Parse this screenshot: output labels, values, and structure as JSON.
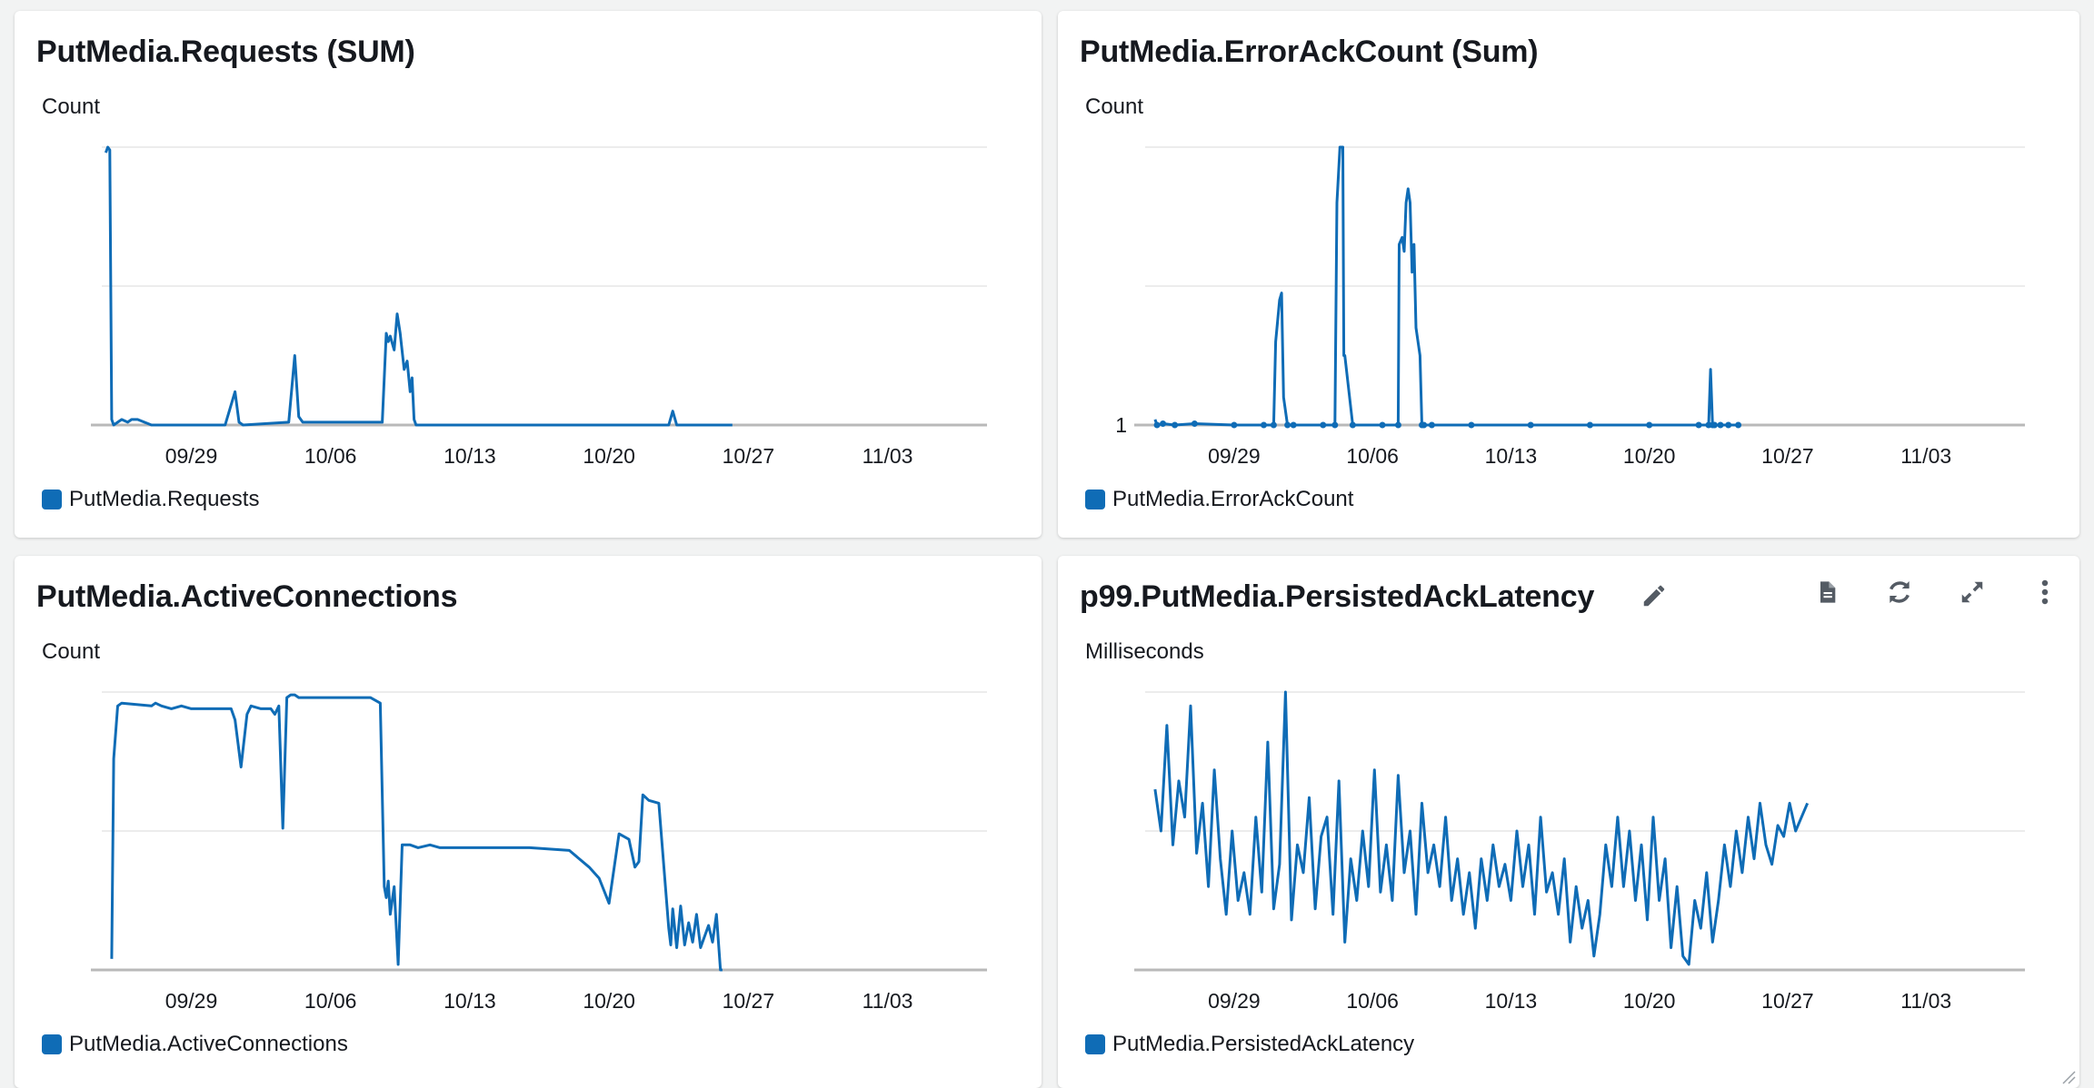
{
  "colors": {
    "series": "#0f6cb6",
    "gridline": "#e6e6e6",
    "axis": "#b9b9b9",
    "icon": "#545b64"
  },
  "panels": [
    {
      "title": "PutMedia.Requests (SUM)",
      "unit": "Count",
      "legend": "PutMedia.Requests",
      "icons": []
    },
    {
      "title": "PutMedia.ErrorAckCount (Sum)",
      "unit": "Count",
      "legend": "PutMedia.ErrorAckCount",
      "icons": []
    },
    {
      "title": "PutMedia.ActiveConnections",
      "unit": "Count",
      "legend": "PutMedia.ActiveConnections",
      "icons": []
    },
    {
      "title": "p99.PutMedia.PersistedAckLatency",
      "unit": "Milliseconds",
      "legend": "PutMedia.PersistedAckLatency",
      "icons": [
        "pencil-icon",
        "document-icon",
        "refresh-icon",
        "expand-icon",
        "more-vertical-icon"
      ]
    }
  ],
  "chart_data": [
    {
      "type": "line",
      "title": "PutMedia.Requests (SUM)",
      "ylabel": "Count",
      "xlim": [
        -4.5,
        40
      ],
      "ylim": [
        0,
        1
      ],
      "x_ticks": [
        {
          "x": 0,
          "label": "09/29"
        },
        {
          "x": 7,
          "label": "10/06"
        },
        {
          "x": 14,
          "label": "10/13"
        },
        {
          "x": 21,
          "label": "10/20"
        },
        {
          "x": 28,
          "label": "10/27"
        },
        {
          "x": 35,
          "label": "11/03"
        }
      ],
      "y_ticks": [],
      "legend": "bottom-left",
      "grid": true,
      "series": [
        {
          "name": "PutMedia.Requests",
          "x": [
            -4.3,
            -4.2,
            -4.1,
            -4.0,
            -3.9,
            -3.7,
            -3.5,
            -3.2,
            -3.0,
            -2.7,
            -2.0,
            1.7,
            2.2,
            2.4,
            2.6,
            4.9,
            5.2,
            5.4,
            5.6,
            9.6,
            9.8,
            9.9,
            10.0,
            10.2,
            10.35,
            10.5,
            10.7,
            10.85,
            11.0,
            11.1,
            11.2,
            11.3,
            11.45,
            14.0,
            20.0,
            24.0,
            24.2,
            24.4,
            24.6,
            26.5,
            27.0,
            27.2
          ],
          "y": [
            0.98,
            1.0,
            0.99,
            0.02,
            0.0,
            0.01,
            0.02,
            0.01,
            0.02,
            0.02,
            0.0,
            0.0,
            0.12,
            0.01,
            0.0,
            0.01,
            0.25,
            0.03,
            0.01,
            0.01,
            0.33,
            0.3,
            0.32,
            0.27,
            0.4,
            0.33,
            0.2,
            0.23,
            0.12,
            0.17,
            0.02,
            0.0,
            0.0,
            0.0,
            0.0,
            0.0,
            0.05,
            0.0,
            0.0,
            0.0,
            0.0,
            0.0
          ]
        }
      ]
    },
    {
      "type": "line",
      "title": "PutMedia.ErrorAckCount (Sum)",
      "ylabel": "Count",
      "xlim": [
        -4.5,
        40
      ],
      "ylim": [
        1,
        3
      ],
      "x_ticks": [
        {
          "x": 0,
          "label": "09/29"
        },
        {
          "x": 7,
          "label": "10/06"
        },
        {
          "x": 14,
          "label": "10/13"
        },
        {
          "x": 21,
          "label": "10/20"
        },
        {
          "x": 28,
          "label": "10/27"
        },
        {
          "x": 35,
          "label": "11/03"
        }
      ],
      "y_ticks": [
        {
          "y": 1,
          "label": "1"
        }
      ],
      "legend": "bottom-left",
      "grid": true,
      "series": [
        {
          "name": "PutMedia.ErrorAckCount",
          "x": [
            -4.0,
            -3.9,
            -3.6,
            -3.0,
            -2.0,
            0.0,
            1.5,
            2.0,
            2.1,
            2.3,
            2.4,
            2.5,
            2.7,
            3.0,
            4.5,
            5.1,
            5.2,
            5.35,
            5.5,
            5.55,
            5.6,
            6.0,
            7.5,
            8.3,
            8.35,
            8.5,
            8.6,
            8.7,
            8.8,
            8.9,
            9.0,
            9.1,
            9.2,
            9.3,
            9.4,
            9.5,
            9.6,
            10.0,
            12.0,
            15.0,
            18.0,
            21.0,
            23.5,
            24.0,
            24.1,
            24.2,
            24.3,
            24.6,
            25.0,
            25.5
          ],
          "y": [
            1.04,
            1.0,
            1.01,
            1.0,
            1.01,
            1.0,
            1.0,
            1.0,
            1.6,
            1.9,
            1.95,
            1.2,
            1.0,
            1.0,
            1.0,
            1.0,
            2.6,
            3.0,
            3.0,
            1.5,
            1.5,
            1.0,
            1.0,
            1.0,
            2.3,
            2.35,
            2.25,
            2.6,
            2.7,
            2.6,
            2.1,
            2.3,
            1.7,
            1.6,
            1.5,
            1.0,
            1.0,
            1.0,
            1.0,
            1.0,
            1.0,
            1.0,
            1.0,
            1.0,
            1.4,
            1.0,
            1.0,
            1.0,
            1.0,
            1.0
          ]
        }
      ]
    },
    {
      "type": "line",
      "title": "PutMedia.ActiveConnections",
      "ylabel": "Count",
      "xlim": [
        -4.5,
        40
      ],
      "ylim": [
        0,
        1
      ],
      "x_ticks": [
        {
          "x": 0,
          "label": "09/29"
        },
        {
          "x": 7,
          "label": "10/06"
        },
        {
          "x": 14,
          "label": "10/13"
        },
        {
          "x": 21,
          "label": "10/20"
        },
        {
          "x": 28,
          "label": "10/27"
        },
        {
          "x": 35,
          "label": "11/03"
        }
      ],
      "y_ticks": [],
      "legend": "bottom-left",
      "grid": true,
      "series": [
        {
          "name": "PutMedia.ActiveConnections",
          "x": [
            -4.0,
            -3.9,
            -3.7,
            -3.5,
            -2.0,
            -1.8,
            -1.5,
            -1.0,
            -0.5,
            0.0,
            1.0,
            2.0,
            2.2,
            2.5,
            2.8,
            3.0,
            3.5,
            4.0,
            4.2,
            4.4,
            4.6,
            4.8,
            5.0,
            5.2,
            5.4,
            6.0,
            7.0,
            8.0,
            9.0,
            9.5,
            9.7,
            9.8,
            9.9,
            10.0,
            10.2,
            10.4,
            10.6,
            10.8,
            11.0,
            11.4,
            12.0,
            12.5,
            13.0,
            14.0,
            17.0,
            19.0,
            20.0,
            20.5,
            21.0,
            21.5,
            22.0,
            22.3,
            22.5,
            22.7,
            23.0,
            23.5,
            24.0,
            24.1,
            24.2,
            24.3,
            24.4,
            24.6,
            24.8,
            25.0,
            25.2,
            25.4,
            25.6,
            26.0,
            26.2,
            26.4,
            26.6,
            26.7
          ],
          "y": [
            0.04,
            0.76,
            0.95,
            0.96,
            0.95,
            0.96,
            0.95,
            0.94,
            0.95,
            0.94,
            0.94,
            0.94,
            0.9,
            0.73,
            0.92,
            0.95,
            0.94,
            0.94,
            0.92,
            0.95,
            0.51,
            0.98,
            0.99,
            0.99,
            0.98,
            0.98,
            0.98,
            0.98,
            0.98,
            0.96,
            0.3,
            0.26,
            0.32,
            0.2,
            0.3,
            0.02,
            0.45,
            0.45,
            0.45,
            0.44,
            0.45,
            0.44,
            0.44,
            0.44,
            0.44,
            0.43,
            0.37,
            0.33,
            0.24,
            0.49,
            0.47,
            0.37,
            0.39,
            0.63,
            0.61,
            0.6,
            0.15,
            0.09,
            0.22,
            0.15,
            0.08,
            0.23,
            0.09,
            0.17,
            0.1,
            0.2,
            0.08,
            0.16,
            0.1,
            0.2,
            0.0,
            0.0
          ]
        }
      ]
    },
    {
      "type": "line",
      "title": "p99.PutMedia.PersistedAckLatency",
      "ylabel": "Milliseconds",
      "xlim": [
        -4.5,
        40
      ],
      "ylim": [
        0,
        1
      ],
      "x_ticks": [
        {
          "x": 0,
          "label": "09/29"
        },
        {
          "x": 7,
          "label": "10/06"
        },
        {
          "x": 14,
          "label": "10/13"
        },
        {
          "x": 21,
          "label": "10/20"
        },
        {
          "x": 28,
          "label": "10/27"
        },
        {
          "x": 35,
          "label": "11/03"
        }
      ],
      "y_ticks": [],
      "legend": "bottom-left",
      "grid": true,
      "series": [
        {
          "name": "PutMedia.PersistedAckLatency",
          "x": [
            -4.0,
            -3.7,
            -3.4,
            -3.1,
            -2.8,
            -2.5,
            -2.2,
            -1.9,
            -1.6,
            -1.3,
            -1.0,
            -0.7,
            -0.4,
            -0.1,
            0.2,
            0.5,
            0.8,
            1.1,
            1.4,
            1.7,
            2.0,
            2.3,
            2.6,
            2.9,
            3.2,
            3.5,
            3.8,
            4.1,
            4.4,
            4.7,
            5.0,
            5.3,
            5.6,
            5.9,
            6.2,
            6.5,
            6.8,
            7.1,
            7.4,
            7.7,
            8.0,
            8.3,
            8.6,
            8.9,
            9.2,
            9.5,
            9.8,
            10.1,
            10.4,
            10.7,
            11.0,
            11.3,
            11.6,
            11.9,
            12.2,
            12.5,
            12.8,
            13.1,
            13.4,
            13.7,
            14.0,
            14.3,
            14.6,
            14.9,
            15.2,
            15.5,
            15.8,
            16.1,
            16.4,
            16.7,
            17.0,
            17.3,
            17.6,
            17.9,
            18.2,
            18.5,
            18.8,
            19.1,
            19.4,
            19.7,
            20.0,
            20.3,
            20.6,
            20.9,
            21.2,
            21.5,
            21.8,
            22.1,
            22.4,
            22.7,
            23.0,
            23.3,
            23.6,
            23.9,
            24.2,
            24.5,
            24.8,
            25.1,
            25.4,
            25.7,
            26.0,
            26.3,
            26.6,
            26.9,
            27.2,
            27.5,
            27.8,
            28.1,
            28.4,
            28.7,
            29.0
          ],
          "y": [
            0.65,
            0.5,
            0.88,
            0.45,
            0.68,
            0.55,
            0.95,
            0.42,
            0.6,
            0.3,
            0.72,
            0.4,
            0.2,
            0.5,
            0.25,
            0.35,
            0.2,
            0.55,
            0.28,
            0.82,
            0.22,
            0.38,
            1.0,
            0.18,
            0.45,
            0.35,
            0.62,
            0.22,
            0.48,
            0.55,
            0.2,
            0.68,
            0.1,
            0.4,
            0.25,
            0.5,
            0.3,
            0.72,
            0.28,
            0.45,
            0.25,
            0.7,
            0.35,
            0.5,
            0.2,
            0.6,
            0.35,
            0.45,
            0.3,
            0.55,
            0.25,
            0.4,
            0.2,
            0.35,
            0.15,
            0.4,
            0.25,
            0.45,
            0.3,
            0.38,
            0.25,
            0.5,
            0.3,
            0.45,
            0.2,
            0.55,
            0.28,
            0.35,
            0.2,
            0.4,
            0.1,
            0.3,
            0.15,
            0.25,
            0.05,
            0.2,
            0.45,
            0.3,
            0.55,
            0.3,
            0.5,
            0.25,
            0.45,
            0.18,
            0.55,
            0.25,
            0.4,
            0.08,
            0.3,
            0.05,
            0.02,
            0.25,
            0.15,
            0.35,
            0.1,
            0.25,
            0.45,
            0.3,
            0.5,
            0.35,
            0.55,
            0.4,
            0.6,
            0.45,
            0.38,
            0.52,
            0.48,
            0.6,
            0.5,
            0.55,
            0.6
          ]
        }
      ]
    }
  ]
}
